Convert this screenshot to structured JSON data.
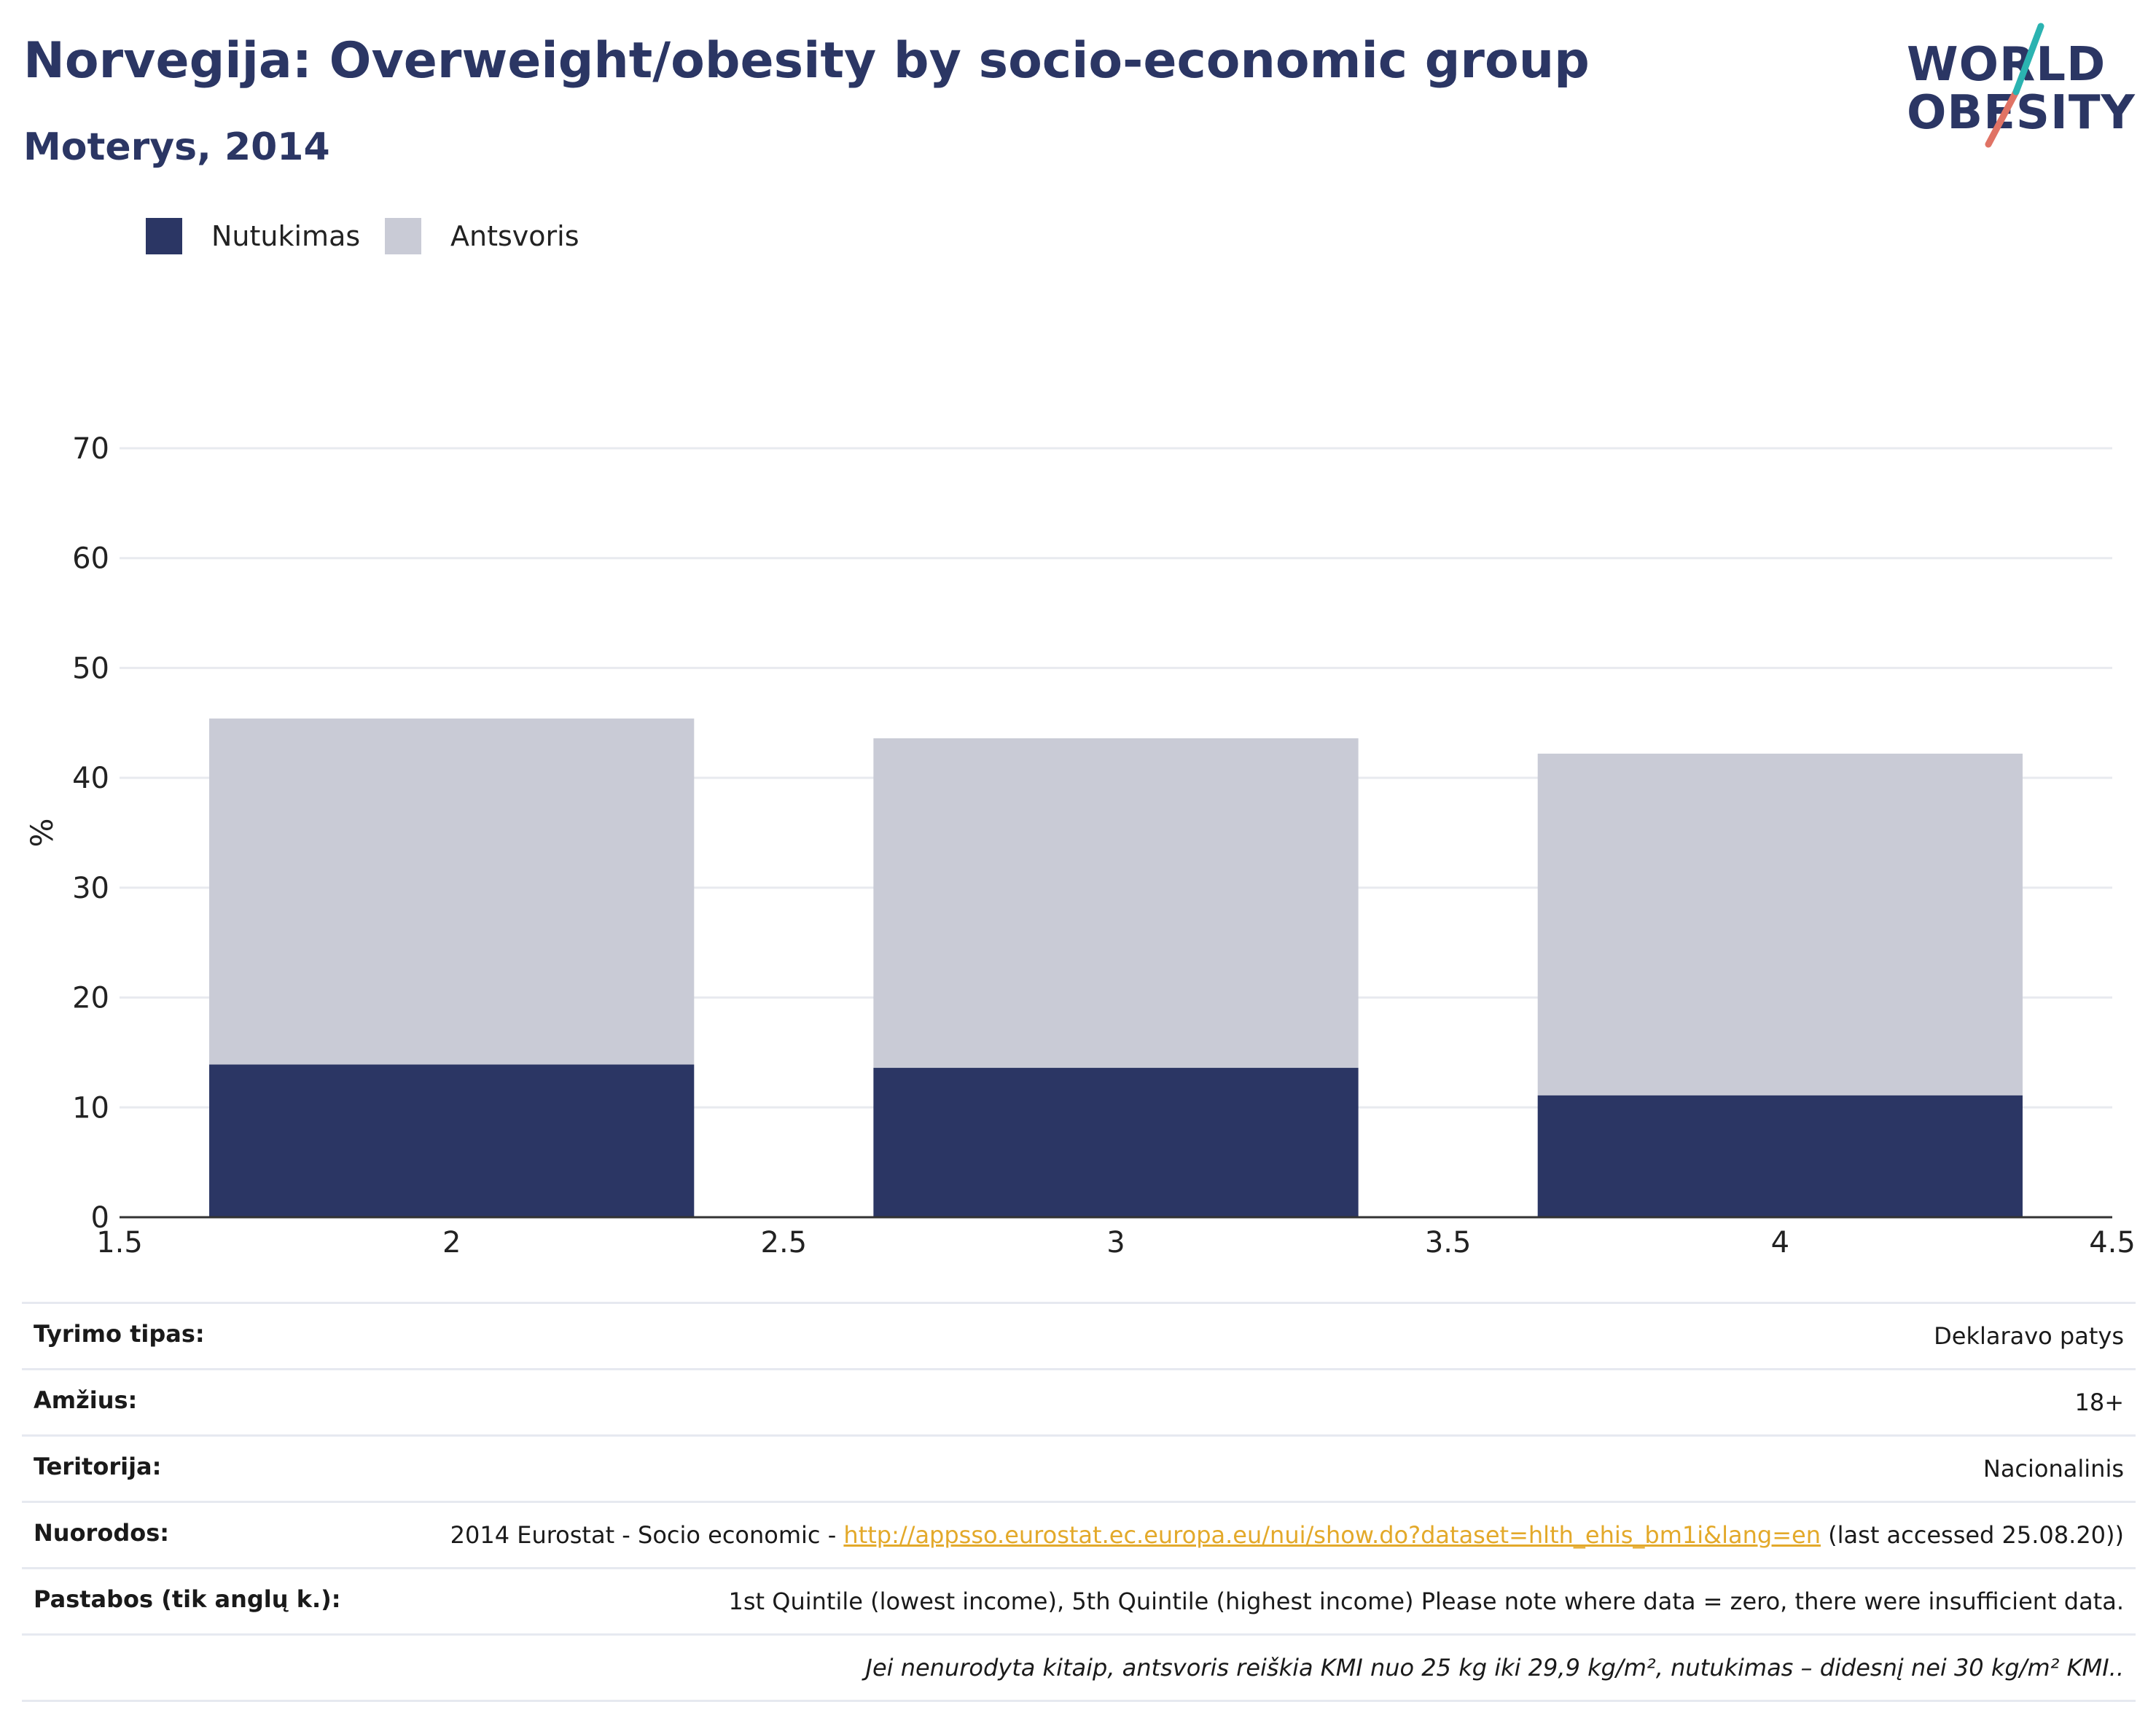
{
  "title": "Norvegija: Overweight/obesity by socio-economic group",
  "subtitle": "Moterys, 2014",
  "logo": {
    "line1": "WORLD",
    "line2": "OBESITY"
  },
  "colors": {
    "obesity": "#2b3664",
    "overweight": "#c9cbd6",
    "link": "#e3a92a",
    "logo_teal": "#2bb3b1",
    "logo_coral": "#e07365"
  },
  "chart_data": {
    "type": "bar",
    "stacked": true,
    "x": [
      2,
      3,
      4
    ],
    "xticks": [
      "1.5",
      "2",
      "2.5",
      "3",
      "3.5",
      "4",
      "4.5"
    ],
    "xlim": [
      1.5,
      4.5
    ],
    "ylabel": "%",
    "ylim": [
      0,
      70
    ],
    "yticks": [
      "0",
      "10",
      "20",
      "30",
      "40",
      "50",
      "60",
      "70"
    ],
    "grid": true,
    "legend_position": "top-left",
    "series": [
      {
        "name": "Nutukimas",
        "values": [
          13.9,
          13.6,
          11.1
        ],
        "color": "#2b3664"
      },
      {
        "name": "Antsvoris",
        "values": [
          31.5,
          30.0,
          31.1
        ],
        "color": "#c9cbd6"
      }
    ]
  },
  "meta": {
    "survey_label": "Tyrimo tipas:",
    "survey_value": "Deklaravo patys",
    "age_label": "Amžius:",
    "age_value": "18+",
    "territory_label": "Teritorija:",
    "territory_value": "Nacionalinis",
    "refs_label": "Nuorodos:",
    "refs_prefix": "2014 Eurostat - Socio economic - ",
    "refs_link": "http://appsso.eurostat.ec.europa.eu/nui/show.do?dataset=hlth_ehis_bm1i&lang=en",
    "refs_suffix": " (last accessed 25.08.20))",
    "notes_label": "Pastabos (tik anglų k.):",
    "notes_value": "1st Quintile (lowest income), 5th Quintile (highest income) Please note where data = zero, there were insufficient data.",
    "footnote": "Jei nenurodyta kitaip, antsvoris reiškia KMI nuo 25 kg iki 29,9 kg/m², nutukimas – didesnį nei 30 kg/m² KMI.."
  }
}
